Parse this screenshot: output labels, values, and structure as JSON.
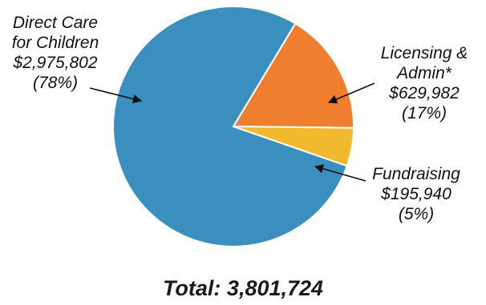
{
  "chart_data": {
    "type": "pie",
    "title": "",
    "total_label": "Total: 3,801,724",
    "slices": [
      {
        "label_lines": [
          "Direct Care",
          "for Children"
        ],
        "amount": "$2,975,802",
        "percent_label": "(78%)",
        "value": 2975802,
        "color": "#3a8fbf"
      },
      {
        "label_lines": [
          "Licensing &",
          "Admin*"
        ],
        "amount": "$629,982",
        "percent_label": "(17%)",
        "value": 629982,
        "color": "#ef7f2f"
      },
      {
        "label_lines": [
          "Fundraising"
        ],
        "amount": "$195,940",
        "percent_label": "(5%)",
        "value": 195940,
        "color": "#f0b92e"
      }
    ]
  }
}
